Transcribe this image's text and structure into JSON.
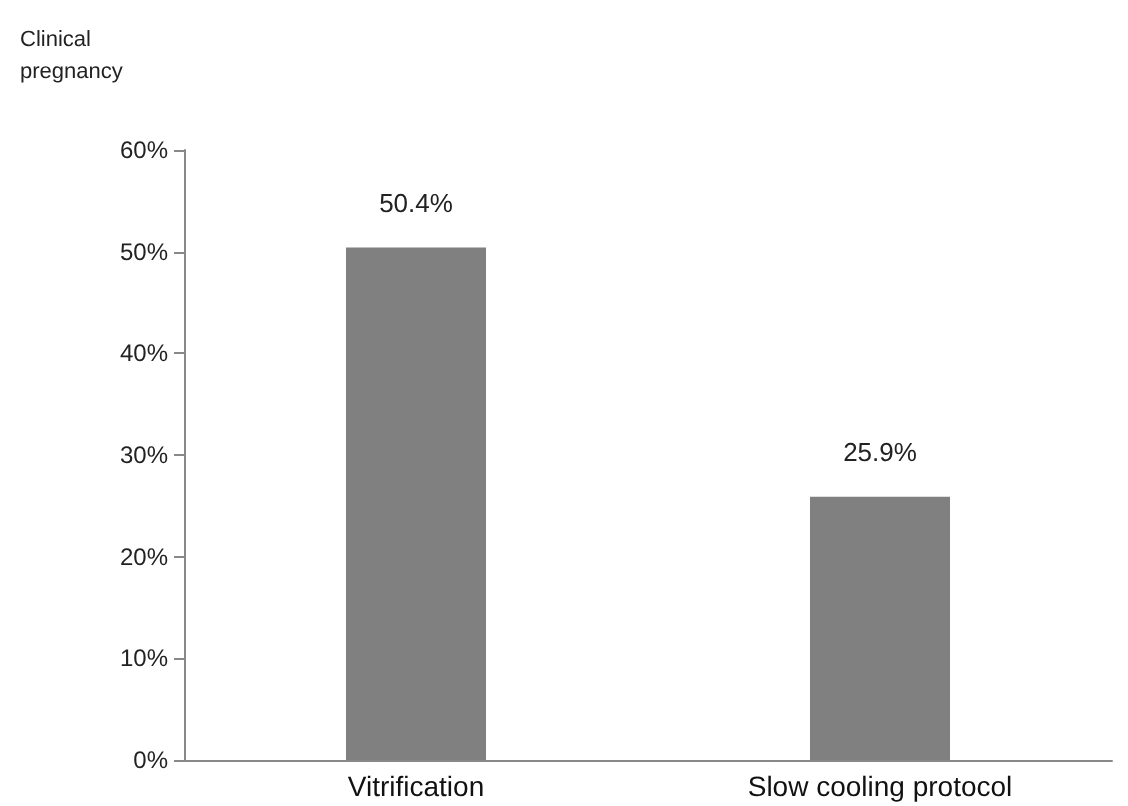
{
  "chart_data": {
    "type": "bar",
    "ylabel": "Clinical pregnancy",
    "categories": [
      "Vitrification",
      "Slow cooling protocol"
    ],
    "values": [
      50.4,
      25.9
    ],
    "color": "#808080",
    "value_labels": [
      "50.4%",
      "25.9%"
    ],
    "ylim": [
      0,
      60
    ],
    "yticks": [
      {
        "value": 0,
        "label": "0%"
      },
      {
        "value": 10,
        "label": "10%"
      },
      {
        "value": 20,
        "label": "20%"
      },
      {
        "value": 30,
        "label": "30%"
      },
      {
        "value": 40,
        "label": "40%"
      },
      {
        "value": 50,
        "label": "50%"
      },
      {
        "value": 60,
        "label": "60%"
      }
    ],
    "grid": false
  }
}
